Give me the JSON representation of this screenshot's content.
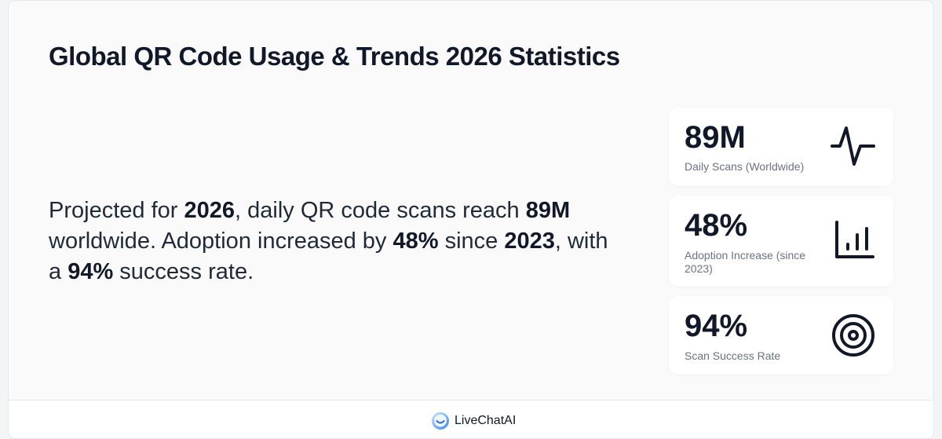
{
  "title": "Global QR Code Usage & Trends 2026 Statistics",
  "description": {
    "p1": "Projected for ",
    "b1": "2026",
    "p2": ", daily QR code scans reach ",
    "b2": "89M",
    "p3": " worldwide. Adoption increased by ",
    "b3": "48%",
    "p4": " since ",
    "b4": "2023",
    "p5": ", with a ",
    "b5": "94%",
    "p6": " success rate."
  },
  "stats": [
    {
      "value": "89M",
      "label": "Daily Scans (Worldwide)",
      "icon": "activity-pulse-icon"
    },
    {
      "value": "48%",
      "label": "Adoption Increase (since 2023)",
      "icon": "bar-chart-icon"
    },
    {
      "value": "94%",
      "label": "Scan Success Rate",
      "icon": "target-icon"
    }
  ],
  "footer": {
    "brand": "LiveChatAI"
  }
}
